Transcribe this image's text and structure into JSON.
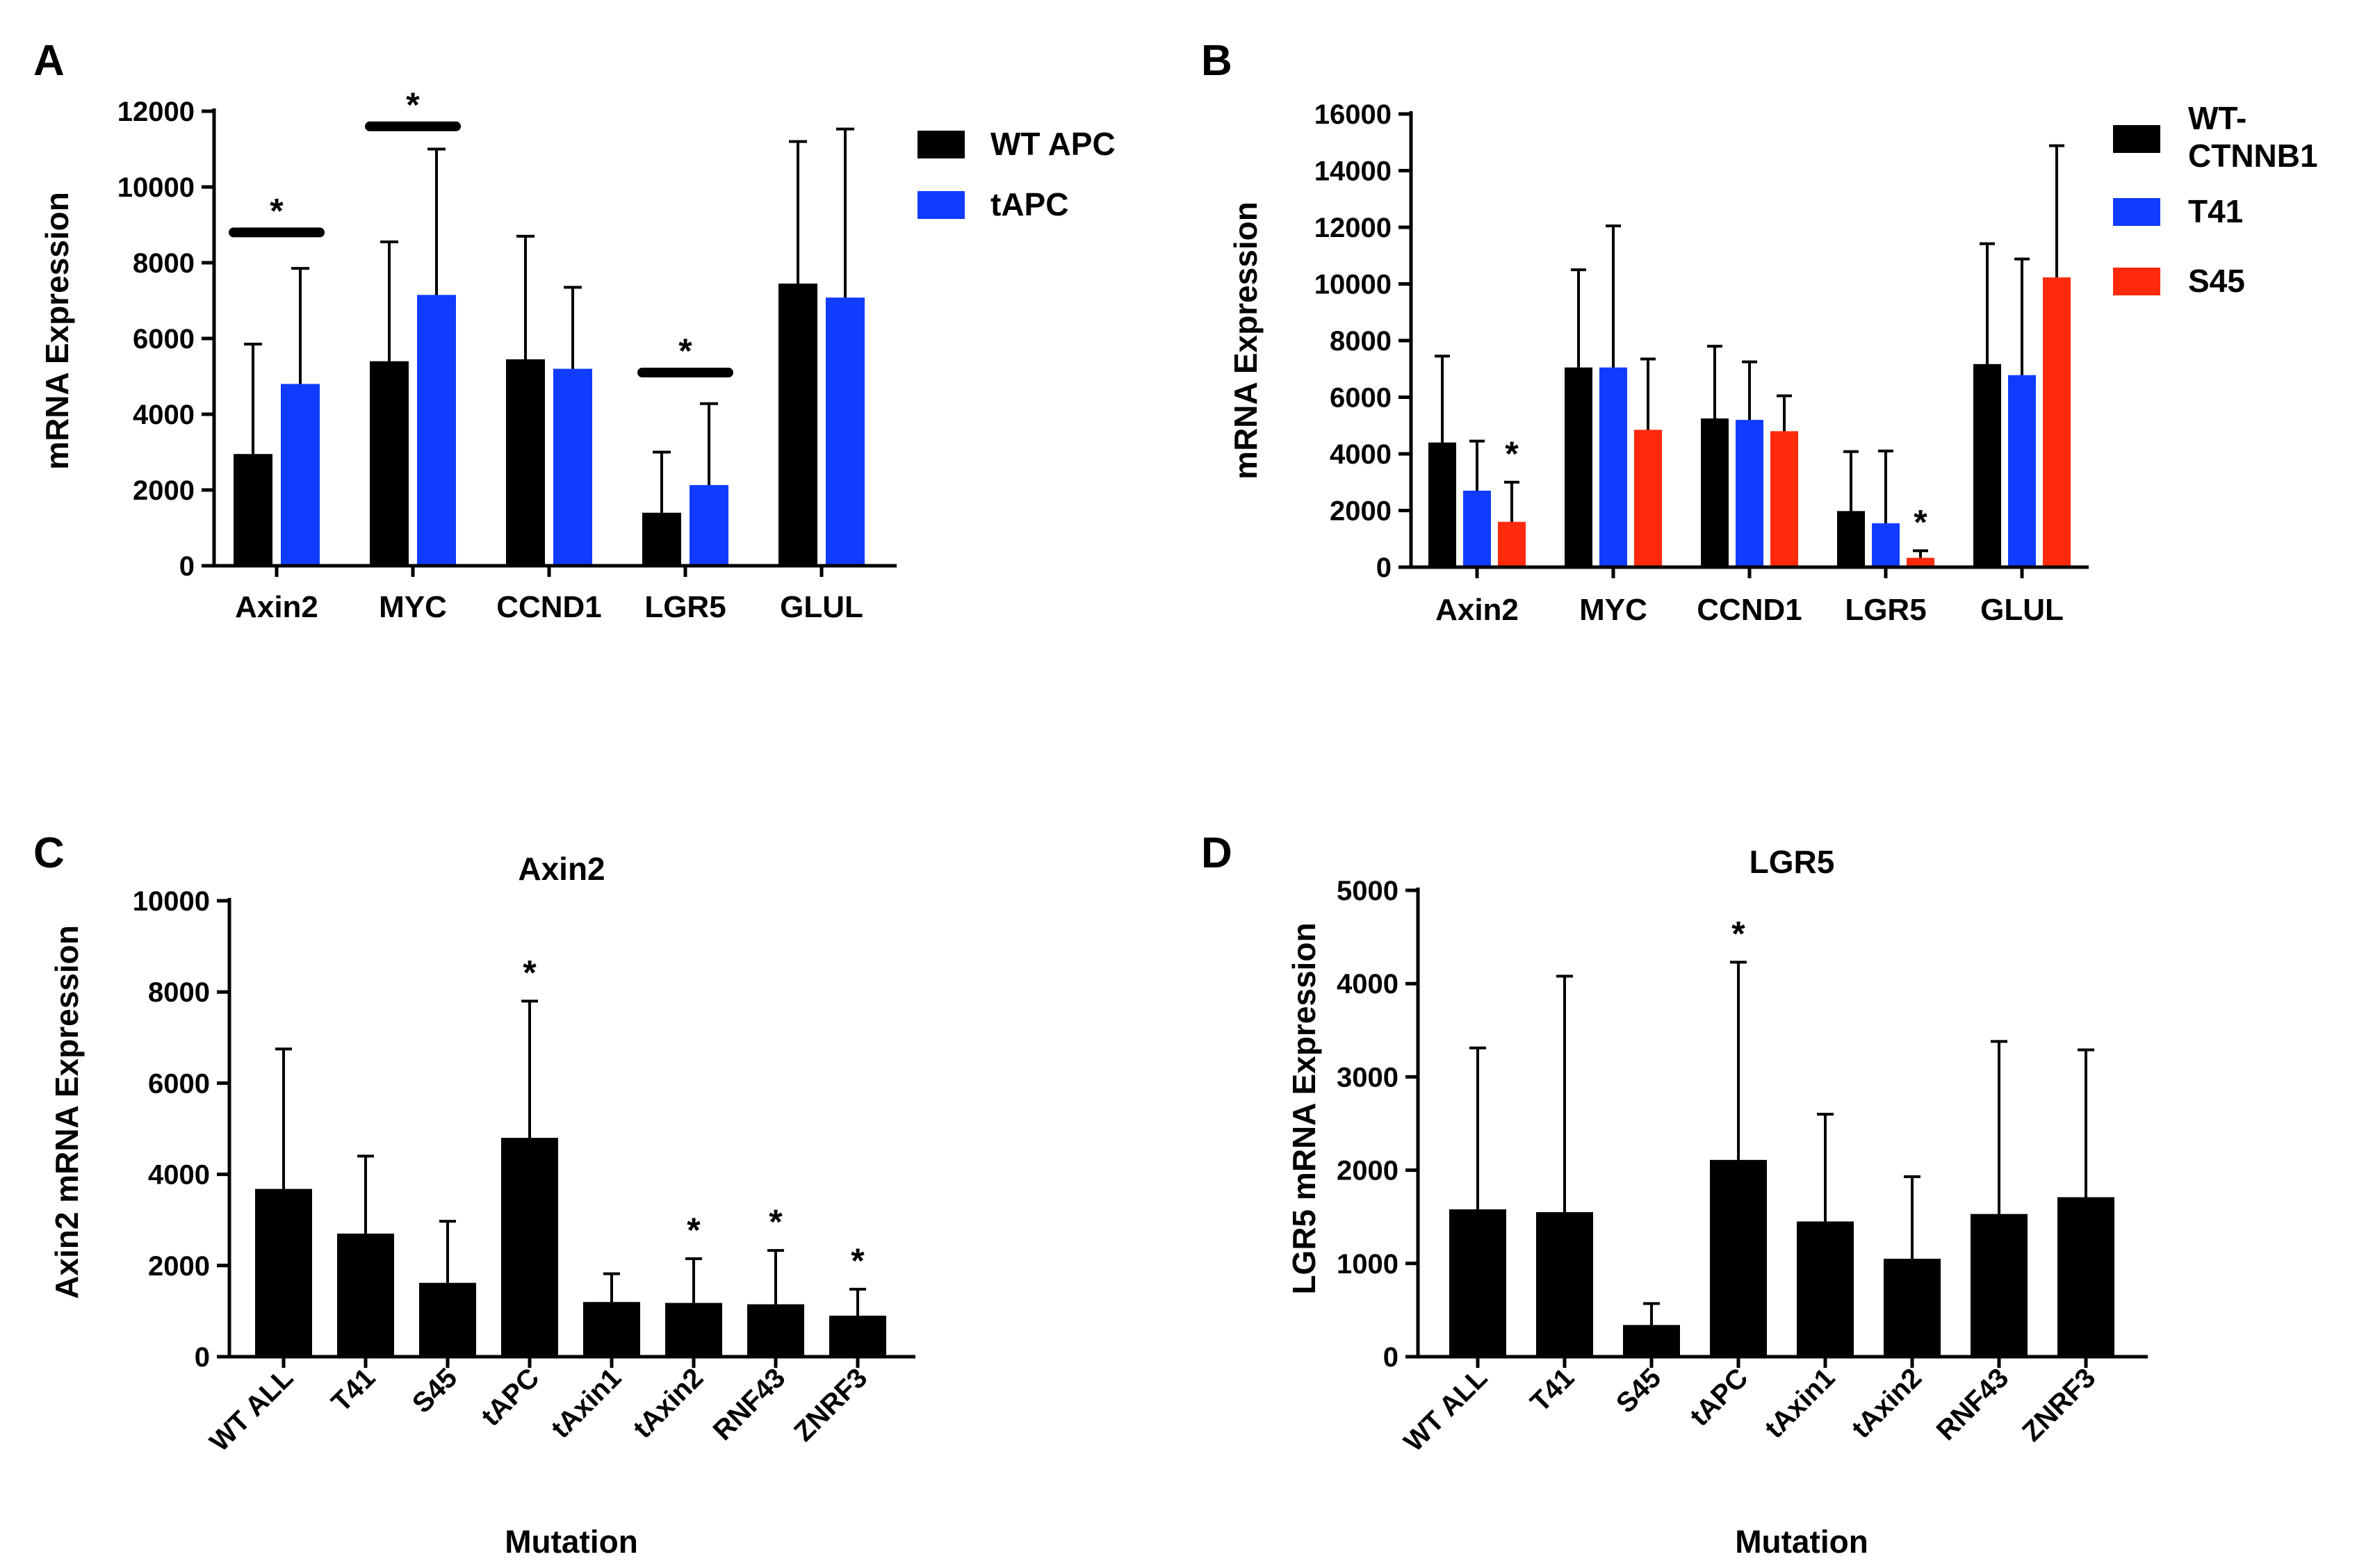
{
  "colors": {
    "black": "#000000",
    "blue": "#0f3cff",
    "red": "#ff2a0c"
  },
  "chart_data": [
    {
      "panel_letter": "A",
      "type": "bar",
      "title": "",
      "xlabel": "",
      "ylabel": "mRNA Expression",
      "ylim": [
        0,
        12000
      ],
      "yticks": [
        0,
        2000,
        4000,
        6000,
        8000,
        10000,
        12000
      ],
      "categories": [
        "Axin2",
        "MYC",
        "CCND1",
        "LGR5",
        "GLUL"
      ],
      "legend_position": "right",
      "series": [
        {
          "name": "WT APC",
          "color": "black",
          "values": [
            2950,
            5400,
            5450,
            1400,
            7450
          ],
          "err": [
            2900,
            3150,
            3250,
            1600,
            3750
          ]
        },
        {
          "name": "tAPC",
          "color": "blue",
          "values": [
            4800,
            7150,
            5200,
            2130,
            7080
          ],
          "err": [
            3050,
            3850,
            2150,
            2150,
            4450
          ]
        }
      ],
      "annotations": [
        {
          "category": 0,
          "text": "*",
          "type": "bracket",
          "y": 8800
        },
        {
          "category": 1,
          "text": "*",
          "type": "bracket",
          "y": 11600
        },
        {
          "category": 3,
          "text": "*",
          "type": "bracket",
          "y": 5100
        }
      ]
    },
    {
      "panel_letter": "B",
      "type": "bar",
      "title": "",
      "xlabel": "",
      "ylabel": "mRNA Expression",
      "ylim": [
        0,
        16000
      ],
      "yticks": [
        0,
        2000,
        4000,
        6000,
        8000,
        10000,
        12000,
        14000,
        16000
      ],
      "categories": [
        "Axin2",
        "MYC",
        "CCND1",
        "LGR5",
        "GLUL"
      ],
      "legend_position": "right",
      "series": [
        {
          "name": "WT-CTNNB1",
          "color": "black",
          "values": [
            4400,
            7050,
            5250,
            1980,
            7170
          ],
          "err": [
            3050,
            3450,
            2550,
            2100,
            4250
          ]
        },
        {
          "name": "T41",
          "color": "blue",
          "values": [
            2700,
            7050,
            5200,
            1550,
            6780
          ],
          "err": [
            1750,
            5000,
            2050,
            2550,
            4100
          ]
        },
        {
          "name": "S45",
          "color": "red",
          "values": [
            1600,
            4850,
            4800,
            330,
            10230
          ],
          "err": [
            1400,
            2500,
            1250,
            250,
            4650
          ]
        }
      ],
      "annotations": [
        {
          "category": 0,
          "series": 2,
          "text": "*"
        },
        {
          "category": 3,
          "series": 2,
          "text": "*"
        }
      ]
    },
    {
      "panel_letter": "C",
      "type": "bar",
      "title": "Axin2",
      "xlabel": "Mutation",
      "ylabel": "Axin2 mRNA Expression",
      "ylim": [
        0,
        10000
      ],
      "yticks": [
        0,
        2000,
        4000,
        6000,
        8000,
        10000
      ],
      "categories": [
        "WT ALL",
        "T41",
        "S45",
        "tAPC",
        "tAxin1",
        "tAxin2",
        "RNF43",
        "ZNRF3"
      ],
      "series": [
        {
          "name": "",
          "color": "black",
          "values": [
            3680,
            2700,
            1620,
            4800,
            1200,
            1180,
            1150,
            900
          ],
          "err": [
            3070,
            1700,
            1350,
            3000,
            620,
            970,
            1180,
            580
          ]
        }
      ],
      "annotations": [
        {
          "category": 3,
          "text": "*"
        },
        {
          "category": 5,
          "text": "*"
        },
        {
          "category": 6,
          "text": "*"
        },
        {
          "category": 7,
          "text": "*"
        }
      ]
    },
    {
      "panel_letter": "D",
      "type": "bar",
      "title": "LGR5",
      "xlabel": "Mutation",
      "ylabel": "LGR5 mRNA Expression",
      "ylim": [
        0,
        5000
      ],
      "yticks": [
        0,
        1000,
        2000,
        3000,
        4000,
        5000
      ],
      "categories": [
        "WT ALL",
        "T41",
        "S45",
        "tAPC",
        "tAxin1",
        "tAxin2",
        "RNF43",
        "ZNRF3"
      ],
      "series": [
        {
          "name": "",
          "color": "black",
          "values": [
            1580,
            1550,
            340,
            2110,
            1450,
            1050,
            1530,
            1710
          ],
          "err": [
            1730,
            2530,
            230,
            2120,
            1150,
            880,
            1850,
            1580
          ]
        }
      ],
      "annotations": [
        {
          "category": 3,
          "text": "*"
        }
      ]
    }
  ]
}
